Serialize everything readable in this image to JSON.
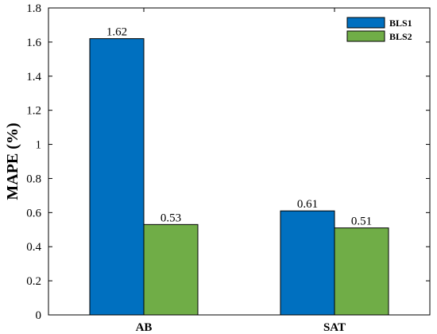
{
  "chart_data": {
    "type": "bar",
    "categories": [
      "AB",
      "SAT"
    ],
    "series": [
      {
        "name": "BLS1",
        "values": [
          1.62,
          0.61
        ],
        "color": "#0070C0"
      },
      {
        "name": "BLS2",
        "values": [
          0.53,
          0.51
        ],
        "color": "#70AD47"
      }
    ],
    "data_labels": [
      [
        "1.62",
        "0.61"
      ],
      [
        "0.53",
        "0.51"
      ]
    ],
    "yticks": [
      "0",
      "0.2",
      "0.4",
      "0.6",
      "0.8",
      "1",
      "1.2",
      "1.4",
      "1.6",
      "1.8"
    ],
    "ylabel": "MAPE (%)",
    "xlabel": "",
    "ylim": [
      0,
      1.8
    ],
    "legend_position": "top-right",
    "grid": false
  }
}
